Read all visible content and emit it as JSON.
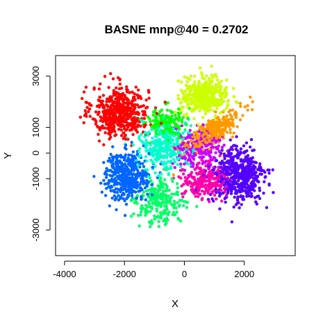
{
  "chart_data": {
    "type": "scatter",
    "title": "BASNE mnp@40 = 0.2702",
    "xlabel": "X",
    "ylabel": "Y",
    "xlim": [
      -4300,
      3700
    ],
    "ylim": [
      -4000,
      3800
    ],
    "xticks": [
      -4000,
      -2000,
      0,
      2000
    ],
    "xtick_labels": [
      "-4000",
      "-2000",
      "0",
      "2000"
    ],
    "yticks": [
      -3000,
      -1000,
      0,
      1000,
      3000
    ],
    "ytick_labels": [
      "-3000",
      "-1000",
      "0",
      "1000",
      "3000"
    ],
    "grid": false,
    "legend": "none",
    "clusters": [
      {
        "color": "#ff0000",
        "center": [
          -2150,
          1600
        ],
        "spread": [
          850,
          900
        ],
        "count": 520
      },
      {
        "color": "#0066ff",
        "center": [
          -1900,
          -900
        ],
        "spread": [
          700,
          850
        ],
        "count": 430
      },
      {
        "color": "#ccff00",
        "center": [
          650,
          2200
        ],
        "spread": [
          700,
          650
        ],
        "count": 420
      },
      {
        "color": "#ff9900",
        "center": [
          1000,
          900
        ],
        "spread": [
          1000,
          350
        ],
        "count": 300,
        "angle": 38
      },
      {
        "color": "#5500ff",
        "center": [
          1800,
          -900
        ],
        "spread": [
          800,
          1000
        ],
        "count": 520
      },
      {
        "color": "#00ff66",
        "center": [
          -800,
          -1900
        ],
        "spread": [
          700,
          800
        ],
        "count": 230
      },
      {
        "color": "#00ffcc",
        "center": [
          -700,
          300
        ],
        "spread": [
          700,
          900
        ],
        "count": 320
      },
      {
        "color": "#00ff00",
        "center": [
          -600,
          1200
        ],
        "spread": [
          600,
          500
        ],
        "count": 150
      },
      {
        "color": "#ff00aa",
        "center": [
          700,
          -1100
        ],
        "spread": [
          700,
          600
        ],
        "count": 260
      },
      {
        "color": "#cc00ff",
        "center": [
          500,
          200
        ],
        "spread": [
          800,
          700
        ],
        "count": 230
      }
    ]
  }
}
